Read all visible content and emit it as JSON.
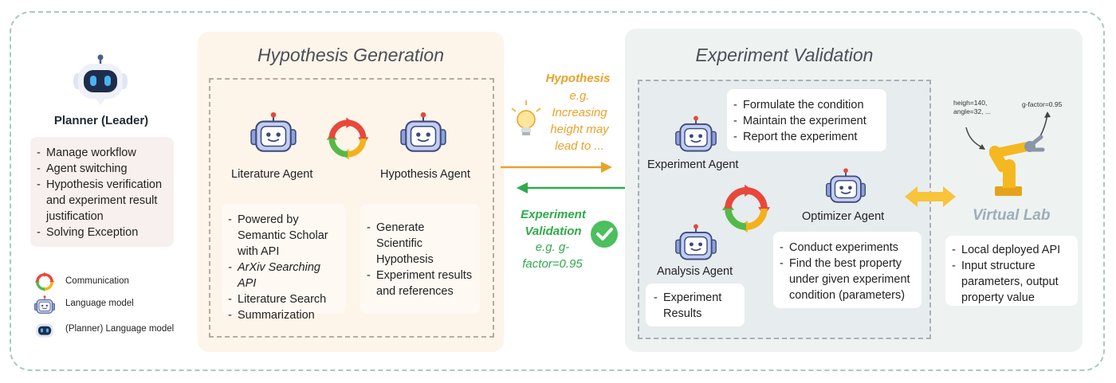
{
  "planner": {
    "title": "Planner (Leader)",
    "items": [
      "Manage workflow",
      "Agent switching",
      "Hypothesis verification and experiment result justification",
      "Solving Exception"
    ]
  },
  "legend": {
    "communication": "Communication",
    "language_model": "Language model",
    "planner_language_model": "(Planner) Language model"
  },
  "hypothesis_generation": {
    "title": "Hypothesis Generation",
    "literature_agent": "Literature Agent",
    "hypothesis_agent": "Hypothesis Agent",
    "literature_items": [
      "Powered by Semantic Scholar with API",
      "ArXiv Searching API",
      "Literature Search",
      "Summarization"
    ],
    "hypothesis_items": [
      "Generate Scientific Hypothesis",
      "Experiment results and references"
    ]
  },
  "middle": {
    "hypothesis_title": "Hypothesis",
    "hypothesis_example": "e.g. Increasing height may lead to ...",
    "validation_title": "Experiment Validation",
    "validation_example": "e.g. g-factor=0.95"
  },
  "experiment_validation": {
    "title": "Experiment Validation",
    "experiment_agent": "Experiment Agent",
    "experiment_items": [
      "Formulate the condition",
      "Maintain the experiment",
      "Report the experiment"
    ],
    "optimizer_agent": "Optimizer Agent",
    "optimizer_items": [
      "Conduct experiments",
      "Find the best property under given experiment condition (parameters)"
    ],
    "analysis_agent": "Analysis Agent",
    "analysis_items": [
      "Experiment Results"
    ]
  },
  "virtual_lab": {
    "title": "Virtual Lab",
    "input_note": "heigh=140, angle=32, ...",
    "output_note": "g-factor=0.95",
    "items": [
      "Local deployed API",
      "Input structure parameters, output property value"
    ]
  },
  "colors": {
    "hypothesis_orange": "#e9a22a",
    "validation_green": "#2faa4a",
    "robot_blue": "#6b7fc4",
    "planner_dark": "#1f2d4d",
    "cycle_red": "#e8483a",
    "cycle_yellow": "#f3b21c",
    "cycle_green": "#55b947"
  },
  "icons": [
    "robot-icon",
    "planner-robot-icon",
    "cycle-icon",
    "lightbulb-icon",
    "check-circle-icon",
    "robot-arm-icon",
    "double-arrow-icon"
  ]
}
